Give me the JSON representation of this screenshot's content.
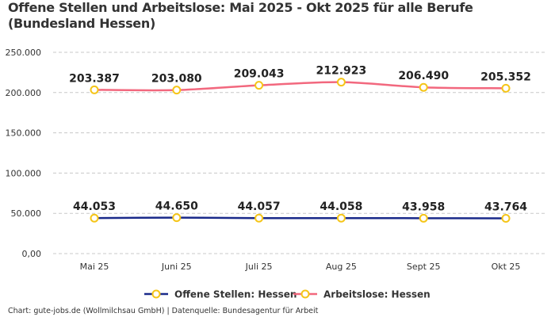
{
  "title": "Offene Stellen und Arbeitslose: Mai 2025 - Okt 2025 für alle Berufe (Bundesland Hessen)",
  "footer": "Chart: gute-jobs.de (Wollmilchsau GmbH) | Datenquelle: Bundesagentur für Arbeit",
  "chart_data": {
    "type": "line",
    "title": "Offene Stellen und Arbeitslose: Mai 2025 - Okt 2025 für alle Berufe (Bundesland Hessen)",
    "categories": [
      "Mai 25",
      "Juni 25",
      "Juli 25",
      "Aug 25",
      "Sept 25",
      "Okt 25"
    ],
    "ylim": [
      0,
      250000
    ],
    "yticks": [
      0,
      50000,
      100000,
      150000,
      200000,
      250000
    ],
    "ytick_labels": [
      "0,00",
      "50.000",
      "100.000",
      "150.000",
      "200.000",
      "250.000"
    ],
    "grid": true,
    "legend_position": "bottom",
    "series": [
      {
        "name": "Offene Stellen: Hessen",
        "color": "#1a2a8a",
        "marker_color": "#f5c518",
        "values": [
          44053,
          44650,
          44057,
          44058,
          43958,
          43764
        ],
        "labels": [
          "44.053",
          "44.650",
          "44.057",
          "44.058",
          "43.958",
          "43.764"
        ]
      },
      {
        "name": "Arbeitslose: Hessen",
        "color": "#f2687e",
        "marker_color": "#f5c518",
        "values": [
          203387,
          203080,
          209043,
          212923,
          206490,
          205352
        ],
        "labels": [
          "203.387",
          "203.080",
          "209.043",
          "212.923",
          "206.490",
          "205.352"
        ]
      }
    ]
  }
}
